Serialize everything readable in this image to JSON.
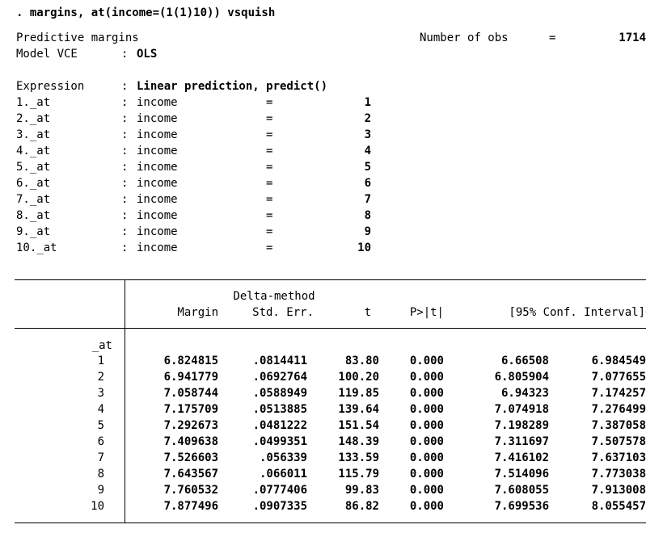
{
  "command": ". margins, at(income=(1(1)10)) vsquish",
  "header": {
    "title": "Predictive margins",
    "nobs_label": "Number of obs",
    "nobs_eq": "=",
    "nobs_value": "1714",
    "vce_label": "Model VCE",
    "vce_colon": ":",
    "vce_value": "OLS",
    "expr_label": "Expression",
    "expr_colon": ":",
    "expr_value": "Linear prediction, predict()"
  },
  "at_rows": [
    {
      "label": "1._at",
      "colon": ":",
      "var": "income",
      "eq": "=",
      "value": "1"
    },
    {
      "label": "2._at",
      "colon": ":",
      "var": "income",
      "eq": "=",
      "value": "2"
    },
    {
      "label": "3._at",
      "colon": ":",
      "var": "income",
      "eq": "=",
      "value": "3"
    },
    {
      "label": "4._at",
      "colon": ":",
      "var": "income",
      "eq": "=",
      "value": "4"
    },
    {
      "label": "5._at",
      "colon": ":",
      "var": "income",
      "eq": "=",
      "value": "5"
    },
    {
      "label": "6._at",
      "colon": ":",
      "var": "income",
      "eq": "=",
      "value": "6"
    },
    {
      "label": "7._at",
      "colon": ":",
      "var": "income",
      "eq": "=",
      "value": "7"
    },
    {
      "label": "8._at",
      "colon": ":",
      "var": "income",
      "eq": "=",
      "value": "8"
    },
    {
      "label": "9._at",
      "colon": ":",
      "var": "income",
      "eq": "=",
      "value": "9"
    },
    {
      "label": "10._at",
      "colon": ":",
      "var": "income",
      "eq": "=",
      "value": "10"
    }
  ],
  "table": {
    "delta_header": "Delta-method",
    "columns": [
      "Margin",
      "Std. Err.",
      "t",
      "P>|t|",
      "[95% Conf. Interval]"
    ],
    "group_label": "_at",
    "rows": [
      {
        "at": "1",
        "margin": "6.824815",
        "se": ".0814411",
        "t": "83.80",
        "p": "0.000",
        "lo": "6.66508",
        "hi": "6.984549"
      },
      {
        "at": "2",
        "margin": "6.941779",
        "se": ".0692764",
        "t": "100.20",
        "p": "0.000",
        "lo": "6.805904",
        "hi": "7.077655"
      },
      {
        "at": "3",
        "margin": "7.058744",
        "se": ".0588949",
        "t": "119.85",
        "p": "0.000",
        "lo": "6.94323",
        "hi": "7.174257"
      },
      {
        "at": "4",
        "margin": "7.175709",
        "se": ".0513885",
        "t": "139.64",
        "p": "0.000",
        "lo": "7.074918",
        "hi": "7.276499"
      },
      {
        "at": "5",
        "margin": "7.292673",
        "se": ".0481222",
        "t": "151.54",
        "p": "0.000",
        "lo": "7.198289",
        "hi": "7.387058"
      },
      {
        "at": "6",
        "margin": "7.409638",
        "se": ".0499351",
        "t": "148.39",
        "p": "0.000",
        "lo": "7.311697",
        "hi": "7.507578"
      },
      {
        "at": "7",
        "margin": "7.526603",
        "se": ".056339",
        "t": "133.59",
        "p": "0.000",
        "lo": "7.416102",
        "hi": "7.637103"
      },
      {
        "at": "8",
        "margin": "7.643567",
        "se": ".066011",
        "t": "115.79",
        "p": "0.000",
        "lo": "7.514096",
        "hi": "7.773038"
      },
      {
        "at": "9",
        "margin": "7.760532",
        "se": ".0777406",
        "t": "99.83",
        "p": "0.000",
        "lo": "7.608055",
        "hi": "7.913008"
      },
      {
        "at": "10",
        "margin": "7.877496",
        "se": ".0907335",
        "t": "86.82",
        "p": "0.000",
        "lo": "7.699536",
        "hi": "8.055457"
      }
    ]
  }
}
